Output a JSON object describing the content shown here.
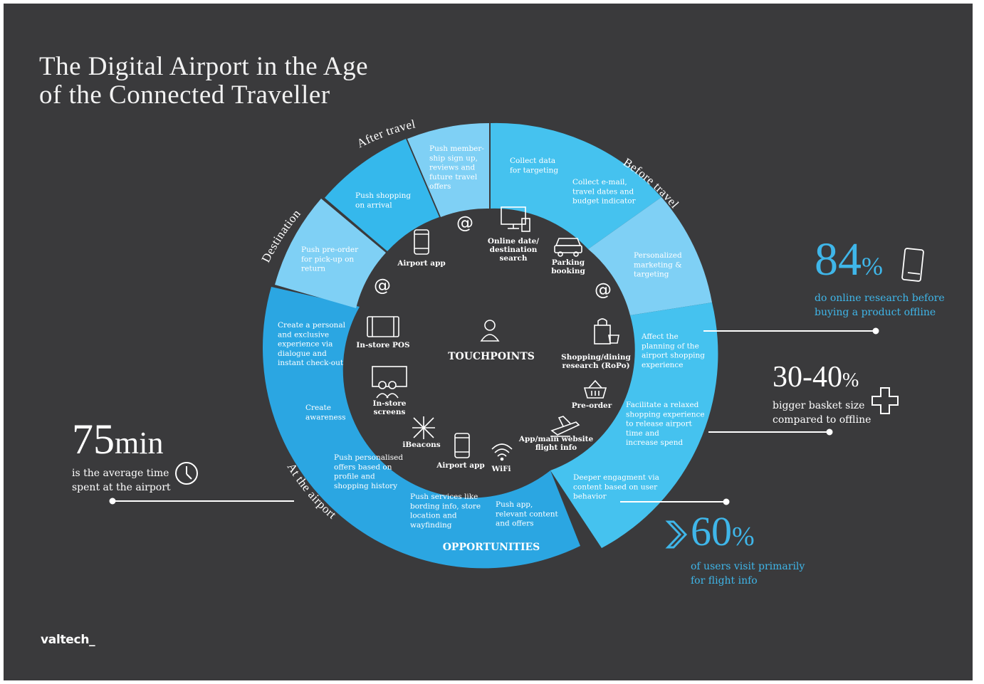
{
  "title": {
    "line1": "The Digital Airport in the Age",
    "line2": "of the Connected Traveller"
  },
  "phases": {
    "before": "Before travel",
    "after": "After travel",
    "destination": "Destination",
    "airport": "At the airport"
  },
  "opportunities": [
    [
      "Collect data",
      "for targeting"
    ],
    [
      "Collect e-mail,",
      "travel dates and",
      "budget indicator"
    ],
    [
      "Personalized",
      "marketing &",
      "targeting"
    ],
    [
      "Affect the",
      "planning of the",
      "airport shopping",
      "experience"
    ],
    [
      "Facilitate a relaxed",
      "shopping experience",
      "to release airport",
      "time and",
      "increase spend"
    ],
    [
      "Deeper engagment via",
      "content based on user",
      "behavior"
    ],
    [
      "Push app,",
      "relevant content",
      "and offers"
    ],
    [
      "Push services like",
      "bording info, store",
      "location and",
      "wayfinding"
    ],
    [
      "Push personalised",
      "offers based on",
      "profile and",
      "shopping history"
    ],
    [
      "Create",
      "awareness"
    ],
    [
      "Create a personal",
      "and exclusive",
      "experience via",
      "dialogue and",
      "instant check-out"
    ],
    [
      "Push pre-order",
      "for pick-up on",
      "return"
    ],
    [
      "Push shopping",
      "on arrival"
    ],
    [
      "Push member-",
      "ship sign up,",
      "reviews and",
      "future travel",
      "offers"
    ]
  ],
  "touchpoints": {
    "online_search": [
      "Online date/",
      "destination",
      "search"
    ],
    "parking": [
      "Parking",
      "booking"
    ],
    "shopping_research": [
      "Shopping/dining",
      "research (RoPo)"
    ],
    "pre_order": [
      "Pre-order"
    ],
    "app_website": [
      "App/main website",
      "flight info"
    ],
    "wifi": [
      "WiFi"
    ],
    "airport_app_bottom": [
      "Airport app"
    ],
    "ibeacons": [
      "iBeacons"
    ],
    "instore_screens": [
      "In-store",
      "screens"
    ],
    "instore_pos": [
      "In-store POS"
    ],
    "airport_app_top": [
      "Airport app"
    ],
    "at_symbol": "@"
  },
  "center_label": "TOUCHPOINTS",
  "ring_label": "OPPORTUNITIES",
  "stats": {
    "s84": {
      "value": "84",
      "unit": "%",
      "text1": "do online research before",
      "text2": "buying a product offline"
    },
    "s3040": {
      "value": "30-40",
      "unit": "%",
      "text1": "bigger basket size",
      "text2": "compared to offline"
    },
    "s60": {
      "value": "60",
      "unit": "%",
      "text1": "of users visit primarily",
      "text2": "for flight info"
    },
    "s75": {
      "value": "75",
      "unit": "min",
      "text1": "is the average time",
      "text2": "spent at the airport"
    }
  },
  "logo": "valtech_",
  "colors": {
    "background": "#3a3a3c",
    "accent": "#3fb6e9",
    "ring_light": "#7fd0f5",
    "ring_mid": "#45c2ef",
    "ring_dark": "#2ba6e2"
  }
}
